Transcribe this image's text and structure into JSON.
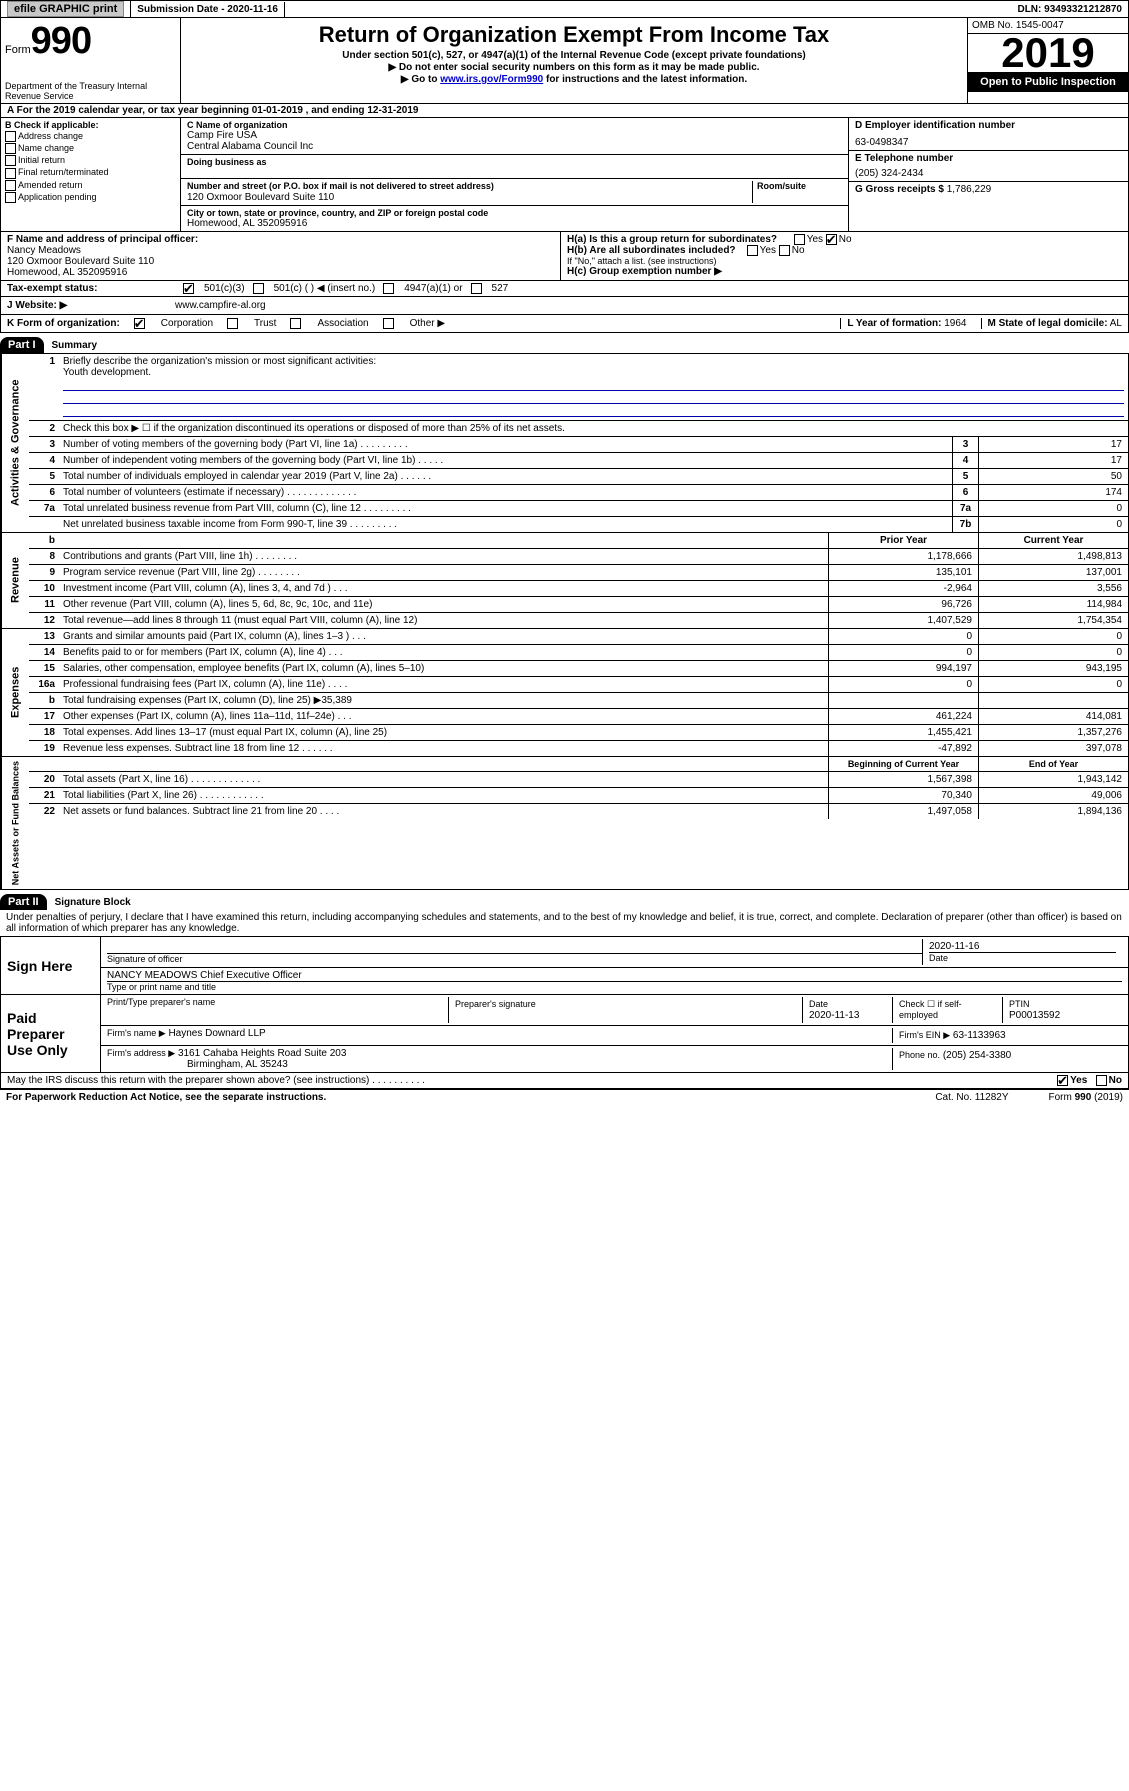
{
  "topbar": {
    "efile": "efile GRAPHIC print",
    "submission_label": "Submission Date - 2020-11-16",
    "dln": "DLN: 93493321212870"
  },
  "header": {
    "form_prefix": "Form",
    "form_number": "990",
    "dept": "Department of the Treasury Internal Revenue Service",
    "title": "Return of Organization Exempt From Income Tax",
    "sub1": "Under section 501(c), 527, or 4947(a)(1) of the Internal Revenue Code (except private foundations)",
    "sub2": "▶ Do not enter social security numbers on this form as it may be made public.",
    "sub3_pre": "▶ Go to ",
    "sub3_link": "www.irs.gov/Form990",
    "sub3_post": " for instructions and the latest information.",
    "omb": "OMB No. 1545-0047",
    "year": "2019",
    "open_public": "Open to Public Inspection"
  },
  "rowA": "A For the 2019 calendar year, or tax year beginning 01-01-2019   , and ending 12-31-2019",
  "sectionB": {
    "heading": "B Check if applicable:",
    "items": [
      "Address change",
      "Name change",
      "Initial return",
      "Final return/terminated",
      "Amended return",
      "Application pending"
    ]
  },
  "sectionC": {
    "label": "C Name of organization",
    "name1": "Camp Fire USA",
    "name2": "Central Alabama Council Inc",
    "dba_label": "Doing business as",
    "addr_label": "Number and street (or P.O. box if mail is not delivered to street address)",
    "room_label": "Room/suite",
    "addr": "120 Oxmoor Boulevard Suite 110",
    "city_label": "City or town, state or province, country, and ZIP or foreign postal code",
    "city": "Homewood, AL  352095916"
  },
  "sectionD": {
    "label": "D Employer identification number",
    "value": "63-0498347"
  },
  "sectionE": {
    "label": "E Telephone number",
    "value": "(205) 324-2434"
  },
  "sectionG": {
    "label": "G Gross receipts $",
    "value": "1,786,229"
  },
  "sectionF": {
    "label": "F Name and address of principal officer:",
    "name": "Nancy Meadows",
    "addr": "120 Oxmoor Boulevard Suite 110",
    "city": "Homewood, AL  352095916"
  },
  "sectionH": {
    "ha": "H(a)  Is this a group return for subordinates?",
    "hb": "H(b)  Are all subordinates included?",
    "hb_note": "If \"No,\" attach a list. (see instructions)",
    "hc": "H(c)  Group exemption number ▶"
  },
  "taxExempt": {
    "label": "Tax-exempt status:",
    "c3": "501(c)(3)",
    "c": "501(c) (   ) ◀ (insert no.)",
    "a4947": "4947(a)(1) or",
    "s527": "527"
  },
  "sectionJ": {
    "label": "J  Website: ▶",
    "value": "www.campfire-al.org"
  },
  "sectionK": {
    "label": "K Form of organization:",
    "opts": [
      "Corporation",
      "Trust",
      "Association",
      "Other ▶"
    ]
  },
  "sectionL": {
    "label": "L Year of formation:",
    "value": "1964"
  },
  "sectionM": {
    "label": "M State of legal domicile:",
    "value": "AL"
  },
  "partI": {
    "hdr": "Part I",
    "title": "Summary",
    "q1": "Briefly describe the organization's mission or most significant activities:",
    "q1_ans": "Youth development.",
    "q2": "Check this box ▶ ☐  if the organization discontinued its operations or disposed of more than 25% of its net assets.",
    "lines_top": [
      {
        "n": "3",
        "d": "Number of voting members of the governing body (Part VI, line 1a)   .    .    .    .    .    .    .    .    .",
        "box": "3",
        "v": "17"
      },
      {
        "n": "4",
        "d": "Number of independent voting members of the governing body (Part VI, line 1b)   .    .    .    .    .",
        "box": "4",
        "v": "17"
      },
      {
        "n": "5",
        "d": "Total number of individuals employed in calendar year 2019 (Part V, line 2a)   .    .    .    .    .    .",
        "box": "5",
        "v": "50"
      },
      {
        "n": "6",
        "d": "Total number of volunteers (estimate if necessary)   .    .    .    .    .    .    .    .    .    .    .    .    .",
        "box": "6",
        "v": "174"
      },
      {
        "n": "7a",
        "d": "Total unrelated business revenue from Part VIII, column (C), line 12   .    .    .    .    .    .    .    .    .",
        "box": "7a",
        "v": "0"
      },
      {
        "n": "",
        "d": "Net unrelated business taxable income from Form 990-T, line 39   .    .    .    .    .    .    .    .    .",
        "box": "7b",
        "v": "0"
      }
    ],
    "col_prior": "Prior Year",
    "col_current": "Current Year",
    "revenue": [
      {
        "n": "8",
        "d": "Contributions and grants (Part VIII, line 1h)   .    .    .    .    .    .    .    .",
        "p": "1,178,666",
        "c": "1,498,813"
      },
      {
        "n": "9",
        "d": "Program service revenue (Part VIII, line 2g)   .    .    .    .    .    .    .    .",
        "p": "135,101",
        "c": "137,001"
      },
      {
        "n": "10",
        "d": "Investment income (Part VIII, column (A), lines 3, 4, and 7d )   .   .   .",
        "p": "-2,964",
        "c": "3,556"
      },
      {
        "n": "11",
        "d": "Other revenue (Part VIII, column (A), lines 5, 6d, 8c, 9c, 10c, and 11e)",
        "p": "96,726",
        "c": "114,984"
      },
      {
        "n": "12",
        "d": "Total revenue—add lines 8 through 11 (must equal Part VIII, column (A), line 12)",
        "p": "1,407,529",
        "c": "1,754,354"
      }
    ],
    "expenses": [
      {
        "n": "13",
        "d": "Grants and similar amounts paid (Part IX, column (A), lines 1–3 )   .   .   .",
        "p": "0",
        "c": "0"
      },
      {
        "n": "14",
        "d": "Benefits paid to or for members (Part IX, column (A), line 4)   .   .   .",
        "p": "0",
        "c": "0"
      },
      {
        "n": "15",
        "d": "Salaries, other compensation, employee benefits (Part IX, column (A), lines 5–10)",
        "p": "994,197",
        "c": "943,195"
      },
      {
        "n": "16a",
        "d": "Professional fundraising fees (Part IX, column (A), line 11e)   .   .   .   .",
        "p": "0",
        "c": "0"
      },
      {
        "n": "b",
        "d": "Total fundraising expenses (Part IX, column (D), line 25) ▶35,389",
        "p": "",
        "c": ""
      },
      {
        "n": "17",
        "d": "Other expenses (Part IX, column (A), lines 11a–11d, 11f–24e)   .   .   .",
        "p": "461,224",
        "c": "414,081"
      },
      {
        "n": "18",
        "d": "Total expenses. Add lines 13–17 (must equal Part IX, column (A), line 25)",
        "p": "1,455,421",
        "c": "1,357,276"
      },
      {
        "n": "19",
        "d": "Revenue less expenses. Subtract line 18 from line 12   .   .   .   .   .   .",
        "p": "-47,892",
        "c": "397,078"
      }
    ],
    "col_begin": "Beginning of Current Year",
    "col_end": "End of Year",
    "netassets": [
      {
        "n": "20",
        "d": "Total assets (Part X, line 16)   .   .   .   .   .   .   .   .   .   .   .   .   .",
        "p": "1,567,398",
        "c": "1,943,142"
      },
      {
        "n": "21",
        "d": "Total liabilities (Part X, line 26)   .   .   .   .   .   .   .   .   .   .   .   .",
        "p": "70,340",
        "c": "49,006"
      },
      {
        "n": "22",
        "d": "Net assets or fund balances. Subtract line 21 from line 20   .   .   .   .",
        "p": "1,497,058",
        "c": "1,894,136"
      }
    ]
  },
  "sideLabels": {
    "gov": "Activities & Governance",
    "rev": "Revenue",
    "exp": "Expenses",
    "net": "Net Assets or Fund Balances"
  },
  "partII": {
    "hdr": "Part II",
    "title": "Signature Block",
    "decl": "Under penalties of perjury, I declare that I have examined this return, including accompanying schedules and statements, and to the best of my knowledge and belief, it is true, correct, and complete. Declaration of preparer (other than officer) is based on all information of which preparer has any knowledge.",
    "sign_here": "Sign Here",
    "sig_officer": "Signature of officer",
    "sig_date": "2020-11-16",
    "date_label": "Date",
    "officer_name": "NANCY MEADOWS  Chief Executive Officer",
    "type_name": "Type or print name and title",
    "paid_prep": "Paid Preparer Use Only",
    "prep_name_label": "Print/Type preparer's name",
    "prep_sig_label": "Preparer's signature",
    "prep_date_label": "Date",
    "prep_date": "2020-11-13",
    "self_emp": "Check ☐ if self-employed",
    "ptin_label": "PTIN",
    "ptin": "P00013592",
    "firm_name_label": "Firm's name    ▶",
    "firm_name": "Haynes Downard LLP",
    "firm_ein_label": "Firm's EIN ▶",
    "firm_ein": "63-1133963",
    "firm_addr_label": "Firm's address ▶",
    "firm_addr1": "3161 Cahaba Heights Road Suite 203",
    "firm_addr2": "Birmingham, AL  35243",
    "phone_label": "Phone no.",
    "phone": "(205) 254-3380",
    "discuss": "May the IRS discuss this return with the preparer shown above? (see instructions)   .   .   .   .   .   .   .   .   .   .",
    "yes": "Yes",
    "no": "No"
  },
  "footer": {
    "paperwork": "For Paperwork Reduction Act Notice, see the separate instructions.",
    "cat": "Cat. No. 11282Y",
    "form": "Form 990 (2019)"
  }
}
